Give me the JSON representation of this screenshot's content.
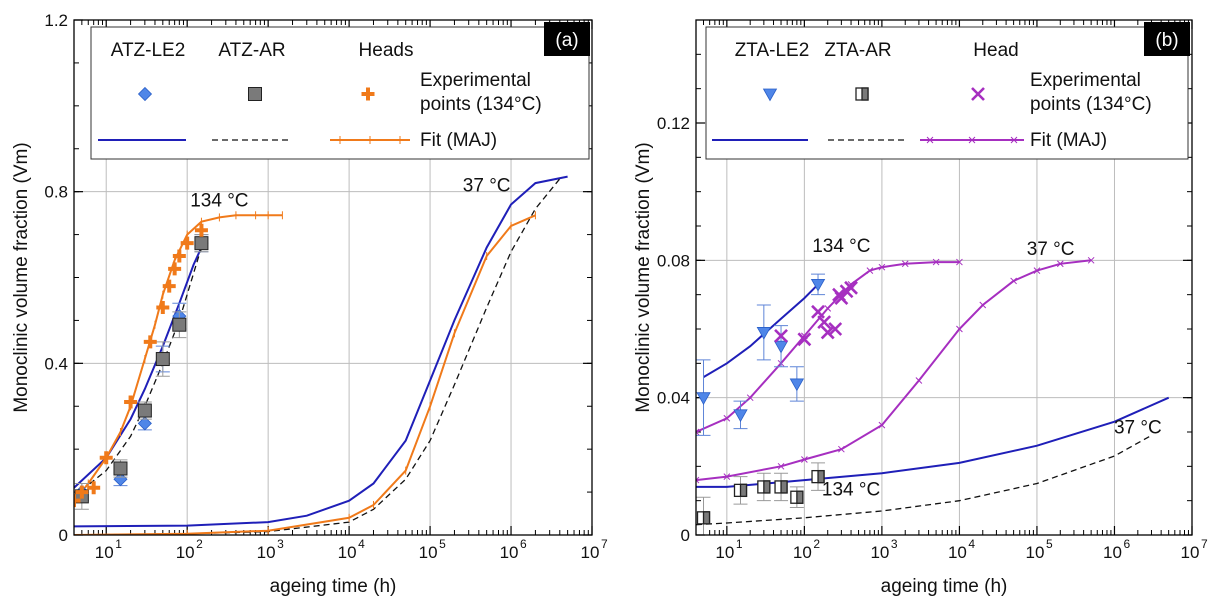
{
  "colors": {
    "blue": "#1f1fb8",
    "blue_marker": "#4f86e8",
    "orange": "#f07a1a",
    "purple": "#a62fc0",
    "gray": "#7a7a7a",
    "black": "#111111",
    "gray_text": "#8a8a8a"
  },
  "chart_data": [
    {
      "type": "scatter",
      "panel_label": "(a)",
      "xscale": "log",
      "xlim": [
        4,
        10000000
      ],
      "ylim": [
        0,
        1.2
      ],
      "xticks": [
        10,
        100,
        1000,
        10000,
        100000,
        1000000,
        10000000
      ],
      "xtick_labels": [
        "10",
        "10",
        "10",
        "10",
        "10",
        "10",
        "10"
      ],
      "xtick_exponents": [
        "1",
        "2",
        "3",
        "4",
        "5",
        "6",
        "7"
      ],
      "yticks": [
        0,
        0.4,
        0.8,
        1.2
      ],
      "ytick_labels": [
        "0",
        "0.4",
        "0.8",
        "1.2"
      ],
      "xlabel": "ageing time (h)",
      "ylabel": "Monoclinic volume fraction (Vm)",
      "grid": true,
      "legend": {
        "placement": "top",
        "headers": [
          "ATZ-LE2",
          "ATZ-AR",
          "Heads"
        ],
        "row1_label": "Experimental points (134°C)",
        "row1_label_lines": [
          "Experimental",
          "points (134°C)"
        ],
        "row2_label": "Fit (MAJ)"
      },
      "annotations": [
        {
          "text": "134 °C",
          "x": 250,
          "y": 0.765,
          "color": "black"
        },
        {
          "text": "37 °C",
          "x": 500000,
          "y": 0.8,
          "color": "black"
        }
      ],
      "series": [
        {
          "name": "ATZ-LE2",
          "kind": "points",
          "marker": "diamond",
          "color": "blue_marker",
          "x": [
            5,
            15,
            30,
            50,
            80,
            150
          ],
          "y": [
            0.1,
            0.13,
            0.26,
            0.41,
            0.51,
            0.68
          ],
          "err": [
            0.02,
            0.015,
            0.015,
            0.03,
            0.03,
            0.02
          ]
        },
        {
          "name": "ATZ-AR",
          "kind": "points",
          "marker": "square",
          "color": "gray",
          "x": [
            5,
            15,
            30,
            50,
            80,
            150
          ],
          "y": [
            0.09,
            0.155,
            0.29,
            0.41,
            0.49,
            0.68
          ],
          "err": [
            0.03,
            0.02,
            0.02,
            0.04,
            0.03,
            0.02
          ]
        },
        {
          "name": "Heads",
          "kind": "points",
          "marker": "plus",
          "color": "orange",
          "x": [
            4,
            5,
            7,
            10,
            20,
            35,
            50,
            60,
            70,
            80,
            100,
            150
          ],
          "y": [
            0.08,
            0.1,
            0.11,
            0.18,
            0.31,
            0.45,
            0.53,
            0.58,
            0.62,
            0.65,
            0.68,
            0.71
          ],
          "err": []
        },
        {
          "name": "ATZ-LE2 fit 134 °C",
          "kind": "line",
          "style": "solid",
          "color": "blue",
          "x": [
            4,
            10,
            20,
            30,
            50,
            80,
            120,
            150
          ],
          "y": [
            0.11,
            0.18,
            0.27,
            0.34,
            0.44,
            0.54,
            0.63,
            0.67
          ]
        },
        {
          "name": "ATZ-AR fit 134 °C",
          "kind": "line",
          "style": "dashed",
          "color": "black",
          "x": [
            4,
            10,
            20,
            30,
            50,
            80,
            150
          ],
          "y": [
            0.09,
            0.15,
            0.23,
            0.3,
            0.4,
            0.5,
            0.67
          ]
        },
        {
          "name": "Heads fit 134 °C",
          "kind": "line",
          "style": "solid",
          "color": "orange",
          "tick_markers": true,
          "x": [
            4,
            6,
            10,
            15,
            20,
            30,
            40,
            50,
            70,
            100,
            150,
            250,
            400,
            700,
            1000,
            1500
          ],
          "y": [
            0.08,
            0.12,
            0.18,
            0.24,
            0.3,
            0.41,
            0.49,
            0.56,
            0.64,
            0.7,
            0.73,
            0.74,
            0.745,
            0.745,
            0.745,
            0.745
          ]
        },
        {
          "name": "ATZ-LE2 fit 37 °C",
          "kind": "line",
          "style": "solid",
          "color": "blue",
          "x": [
            4,
            100,
            1000,
            3000,
            10000,
            20000,
            50000,
            100000,
            200000,
            500000,
            1000000,
            2000000,
            5000000
          ],
          "y": [
            0.02,
            0.022,
            0.03,
            0.045,
            0.08,
            0.12,
            0.22,
            0.36,
            0.5,
            0.67,
            0.77,
            0.82,
            0.835
          ]
        },
        {
          "name": "ATZ-AR fit 37 °C",
          "kind": "line",
          "style": "dashed",
          "color": "black",
          "x": [
            4,
            100,
            1000,
            10000,
            20000,
            50000,
            100000,
            200000,
            500000,
            1000000,
            2000000,
            4000000
          ],
          "y": [
            0.0,
            0.003,
            0.008,
            0.03,
            0.06,
            0.13,
            0.22,
            0.35,
            0.53,
            0.66,
            0.76,
            0.83
          ]
        },
        {
          "name": "Heads fit 37 °C",
          "kind": "line",
          "style": "solid",
          "color": "orange",
          "tick_markers": true,
          "x": [
            4,
            100,
            1000,
            10000,
            20000,
            50000,
            100000,
            200000,
            500000,
            1000000,
            2000000
          ],
          "y": [
            0.0,
            0.003,
            0.01,
            0.04,
            0.07,
            0.15,
            0.3,
            0.47,
            0.65,
            0.72,
            0.745
          ]
        }
      ]
    },
    {
      "type": "scatter",
      "panel_label": "(b)",
      "xscale": "log",
      "xlim": [
        4,
        10000000
      ],
      "ylim": [
        0,
        0.15
      ],
      "xticks": [
        10,
        100,
        1000,
        10000,
        100000,
        1000000,
        10000000
      ],
      "xtick_labels": [
        "10",
        "10",
        "10",
        "10",
        "10",
        "10",
        "10"
      ],
      "xtick_exponents": [
        "1",
        "2",
        "3",
        "4",
        "5",
        "6",
        "7"
      ],
      "yticks": [
        0,
        0.04,
        0.08,
        0.12
      ],
      "ytick_labels": [
        "0",
        "0.04",
        "0.08",
        "0.12"
      ],
      "xlabel": "ageing time (h)",
      "ylabel": "Monoclinic volume fraction (Vm)",
      "grid": true,
      "legend": {
        "placement": "top",
        "headers": [
          "ZTA-LE2",
          "ZTA-AR",
          "Head"
        ],
        "row1_label": "Experimental points (134°C)",
        "row1_label_lines": [
          "Experimental",
          "points (134°C)"
        ],
        "row2_label": "Fit (MAJ)"
      },
      "annotations": [
        {
          "text": "134 °C",
          "x": 300,
          "y": 0.0825,
          "color": "black"
        },
        {
          "text": "37 °C",
          "x": 150000,
          "y": 0.0815,
          "color": "black"
        },
        {
          "text": "37 °C",
          "x": 2000000,
          "y": 0.0295,
          "color": "black"
        },
        {
          "text": "134 °C",
          "x": 400,
          "y": 0.0115,
          "color": "gray_text"
        }
      ],
      "series": [
        {
          "name": "ZTA-LE2",
          "kind": "points",
          "marker": "triangle-down",
          "color": "blue_marker",
          "x": [
            5,
            15,
            30,
            50,
            80,
            150
          ],
          "y": [
            0.04,
            0.035,
            0.059,
            0.055,
            0.044,
            0.073
          ],
          "err": [
            0.011,
            0.004,
            0.008,
            0.006,
            0.005,
            0.003
          ]
        },
        {
          "name": "ZTA-AR",
          "kind": "points",
          "marker": "half-square",
          "color": "gray",
          "x": [
            5,
            15,
            30,
            50,
            80,
            150
          ],
          "y": [
            0.005,
            0.013,
            0.014,
            0.014,
            0.011,
            0.017
          ],
          "err": [
            0.006,
            0.004,
            0.004,
            0.004,
            0.003,
            0.004
          ]
        },
        {
          "name": "Head",
          "kind": "points",
          "marker": "x",
          "color": "purple",
          "x": [
            50,
            100,
            150,
            180,
            200,
            250,
            280,
            300,
            350,
            400
          ],
          "y": [
            0.058,
            0.057,
            0.065,
            0.062,
            0.059,
            0.06,
            0.07,
            0.069,
            0.071,
            0.072
          ],
          "err": []
        },
        {
          "name": "ZTA-LE2 fit 134 °C",
          "kind": "line",
          "style": "solid",
          "color": "blue",
          "x": [
            5,
            10,
            20,
            50,
            100,
            150
          ],
          "y": [
            0.046,
            0.05,
            0.055,
            0.063,
            0.069,
            0.073
          ]
        },
        {
          "name": "Head fit 134 °C",
          "kind": "line",
          "style": "solid",
          "color": "purple",
          "tick_markers": true,
          "x": [
            4,
            10,
            20,
            50,
            100,
            200,
            400,
            700,
            1000,
            2000,
            5000,
            10000
          ],
          "y": [
            0.03,
            0.034,
            0.04,
            0.05,
            0.058,
            0.066,
            0.073,
            0.077,
            0.078,
            0.079,
            0.0795,
            0.0795
          ]
        },
        {
          "name": "Head fit 37 °C",
          "kind": "line",
          "style": "solid",
          "color": "purple",
          "tick_markers": true,
          "x": [
            4,
            10,
            50,
            100,
            300,
            1000,
            3000,
            10000,
            20000,
            50000,
            100000,
            200000,
            500000
          ],
          "y": [
            0.016,
            0.017,
            0.02,
            0.022,
            0.025,
            0.032,
            0.045,
            0.06,
            0.067,
            0.074,
            0.077,
            0.079,
            0.08
          ]
        },
        {
          "name": "ZTA-LE2 fit 37 °C",
          "kind": "line",
          "style": "solid",
          "color": "blue",
          "x": [
            4,
            10,
            100,
            1000,
            10000,
            100000,
            1000000,
            5000000
          ],
          "y": [
            0.014,
            0.014,
            0.016,
            0.018,
            0.021,
            0.026,
            0.033,
            0.04
          ]
        },
        {
          "name": "ZTA-AR fit 37 °C",
          "kind": "line",
          "style": "dashed",
          "color": "black",
          "x": [
            4,
            10,
            100,
            1000,
            10000,
            100000,
            1000000,
            3000000
          ],
          "y": [
            0.003,
            0.0035,
            0.005,
            0.007,
            0.01,
            0.015,
            0.023,
            0.029
          ]
        }
      ]
    }
  ]
}
